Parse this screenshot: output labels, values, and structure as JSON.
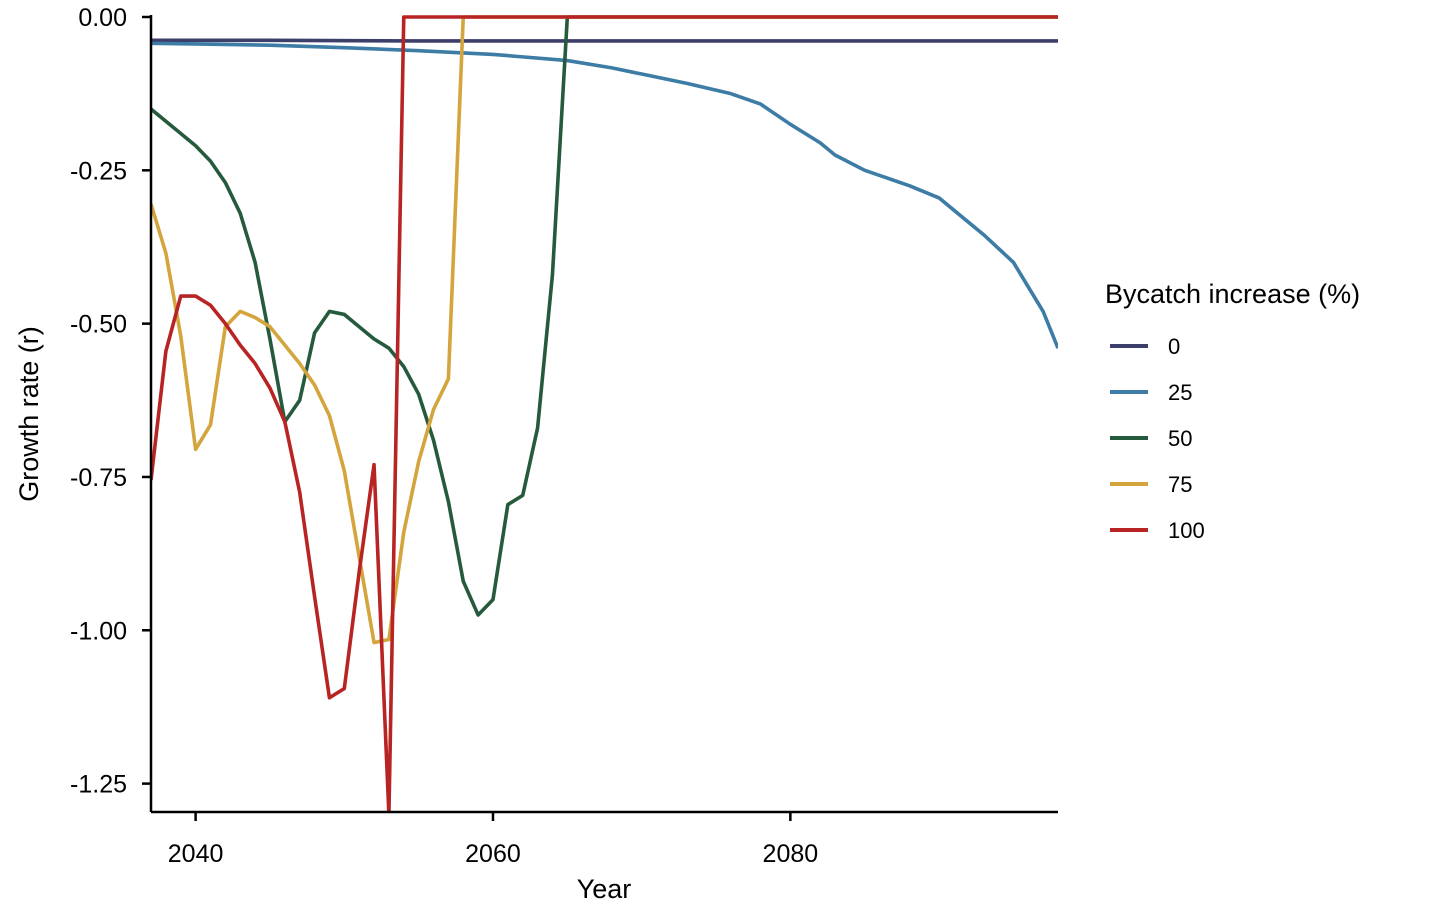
{
  "chart_data": {
    "type": "line",
    "title": "",
    "xlabel": "Year",
    "ylabel": "Growth rate (r)",
    "xlim": [
      2037,
      2098
    ],
    "ylim": [
      -1.3,
      0.0
    ],
    "x_ticks": [
      2040,
      2060,
      2080
    ],
    "y_ticks": [
      0.0,
      -0.25,
      -0.5,
      -0.75,
      -1.0,
      -1.25
    ],
    "y_tick_labels": [
      "0.00",
      "-0.25",
      "-0.50",
      "-0.75",
      "-1.00",
      "-1.25"
    ],
    "grid": false,
    "legend": {
      "title": "Bycatch increase (%)",
      "position": "right",
      "entries": [
        "0",
        "25",
        "50",
        "75",
        "100"
      ]
    },
    "series": [
      {
        "name": "0",
        "color": "#3d3f6b",
        "points": [
          [
            2037,
            -0.038
          ],
          [
            2045,
            -0.038
          ],
          [
            2055,
            -0.039
          ],
          [
            2065,
            -0.039
          ],
          [
            2075,
            -0.039
          ],
          [
            2085,
            -0.039
          ],
          [
            2098,
            -0.039
          ]
        ]
      },
      {
        "name": "25",
        "color": "#3c7ca5",
        "points": [
          [
            2037,
            -0.043
          ],
          [
            2040,
            -0.044
          ],
          [
            2045,
            -0.046
          ],
          [
            2050,
            -0.05
          ],
          [
            2055,
            -0.055
          ],
          [
            2060,
            -0.061
          ],
          [
            2062,
            -0.065
          ],
          [
            2065,
            -0.071
          ],
          [
            2068,
            -0.083
          ],
          [
            2070,
            -0.093
          ],
          [
            2073,
            -0.108
          ],
          [
            2076,
            -0.125
          ],
          [
            2078,
            -0.142
          ],
          [
            2080,
            -0.175
          ],
          [
            2082,
            -0.205
          ],
          [
            2083,
            -0.225
          ],
          [
            2085,
            -0.25
          ],
          [
            2088,
            -0.275
          ],
          [
            2090,
            -0.295
          ],
          [
            2091,
            -0.315
          ],
          [
            2093,
            -0.355
          ],
          [
            2095,
            -0.4
          ],
          [
            2097,
            -0.48
          ],
          [
            2098,
            -0.54
          ]
        ]
      },
      {
        "name": "50",
        "color": "#265a3c",
        "points": [
          [
            2037,
            -0.15
          ],
          [
            2039,
            -0.19
          ],
          [
            2040,
            -0.21
          ],
          [
            2041,
            -0.235
          ],
          [
            2042,
            -0.27
          ],
          [
            2043,
            -0.32
          ],
          [
            2044,
            -0.4
          ],
          [
            2045,
            -0.525
          ],
          [
            2046,
            -0.66
          ],
          [
            2047,
            -0.625
          ],
          [
            2048,
            -0.515
          ],
          [
            2049,
            -0.48
          ],
          [
            2050,
            -0.485
          ],
          [
            2051,
            -0.505
          ],
          [
            2052,
            -0.525
          ],
          [
            2053,
            -0.54
          ],
          [
            2054,
            -0.57
          ],
          [
            2055,
            -0.615
          ],
          [
            2056,
            -0.69
          ],
          [
            2057,
            -0.79
          ],
          [
            2058,
            -0.92
          ],
          [
            2059,
            -0.975
          ],
          [
            2060,
            -0.95
          ],
          [
            2061,
            -0.795
          ],
          [
            2062,
            -0.78
          ],
          [
            2063,
            -0.67
          ],
          [
            2064,
            -0.42
          ],
          [
            2065,
            0.0
          ],
          [
            2098,
            0.0
          ]
        ]
      },
      {
        "name": "75",
        "color": "#d4a53c",
        "points": [
          [
            2037,
            -0.305
          ],
          [
            2038,
            -0.385
          ],
          [
            2039,
            -0.52
          ],
          [
            2040,
            -0.705
          ],
          [
            2041,
            -0.665
          ],
          [
            2042,
            -0.505
          ],
          [
            2043,
            -0.48
          ],
          [
            2044,
            -0.49
          ],
          [
            2045,
            -0.505
          ],
          [
            2046,
            -0.535
          ],
          [
            2047,
            -0.565
          ],
          [
            2048,
            -0.6
          ],
          [
            2049,
            -0.65
          ],
          [
            2050,
            -0.74
          ],
          [
            2051,
            -0.88
          ],
          [
            2052,
            -1.02
          ],
          [
            2053,
            -1.015
          ],
          [
            2054,
            -0.84
          ],
          [
            2055,
            -0.725
          ],
          [
            2056,
            -0.64
          ],
          [
            2057,
            -0.59
          ],
          [
            2058,
            0.0
          ],
          [
            2098,
            0.0
          ]
        ]
      },
      {
        "name": "100",
        "color": "#b82424",
        "points": [
          [
            2037,
            -0.755
          ],
          [
            2038,
            -0.545
          ],
          [
            2039,
            -0.455
          ],
          [
            2040,
            -0.455
          ],
          [
            2041,
            -0.47
          ],
          [
            2042,
            -0.5
          ],
          [
            2043,
            -0.535
          ],
          [
            2044,
            -0.565
          ],
          [
            2045,
            -0.605
          ],
          [
            2046,
            -0.66
          ],
          [
            2047,
            -0.775
          ],
          [
            2048,
            -0.945
          ],
          [
            2049,
            -1.11
          ],
          [
            2050,
            -1.095
          ],
          [
            2051,
            -0.905
          ],
          [
            2052,
            -0.73
          ],
          [
            2053,
            -1.3
          ],
          [
            2054,
            0.0
          ],
          [
            2098,
            0.0
          ]
        ]
      }
    ]
  }
}
